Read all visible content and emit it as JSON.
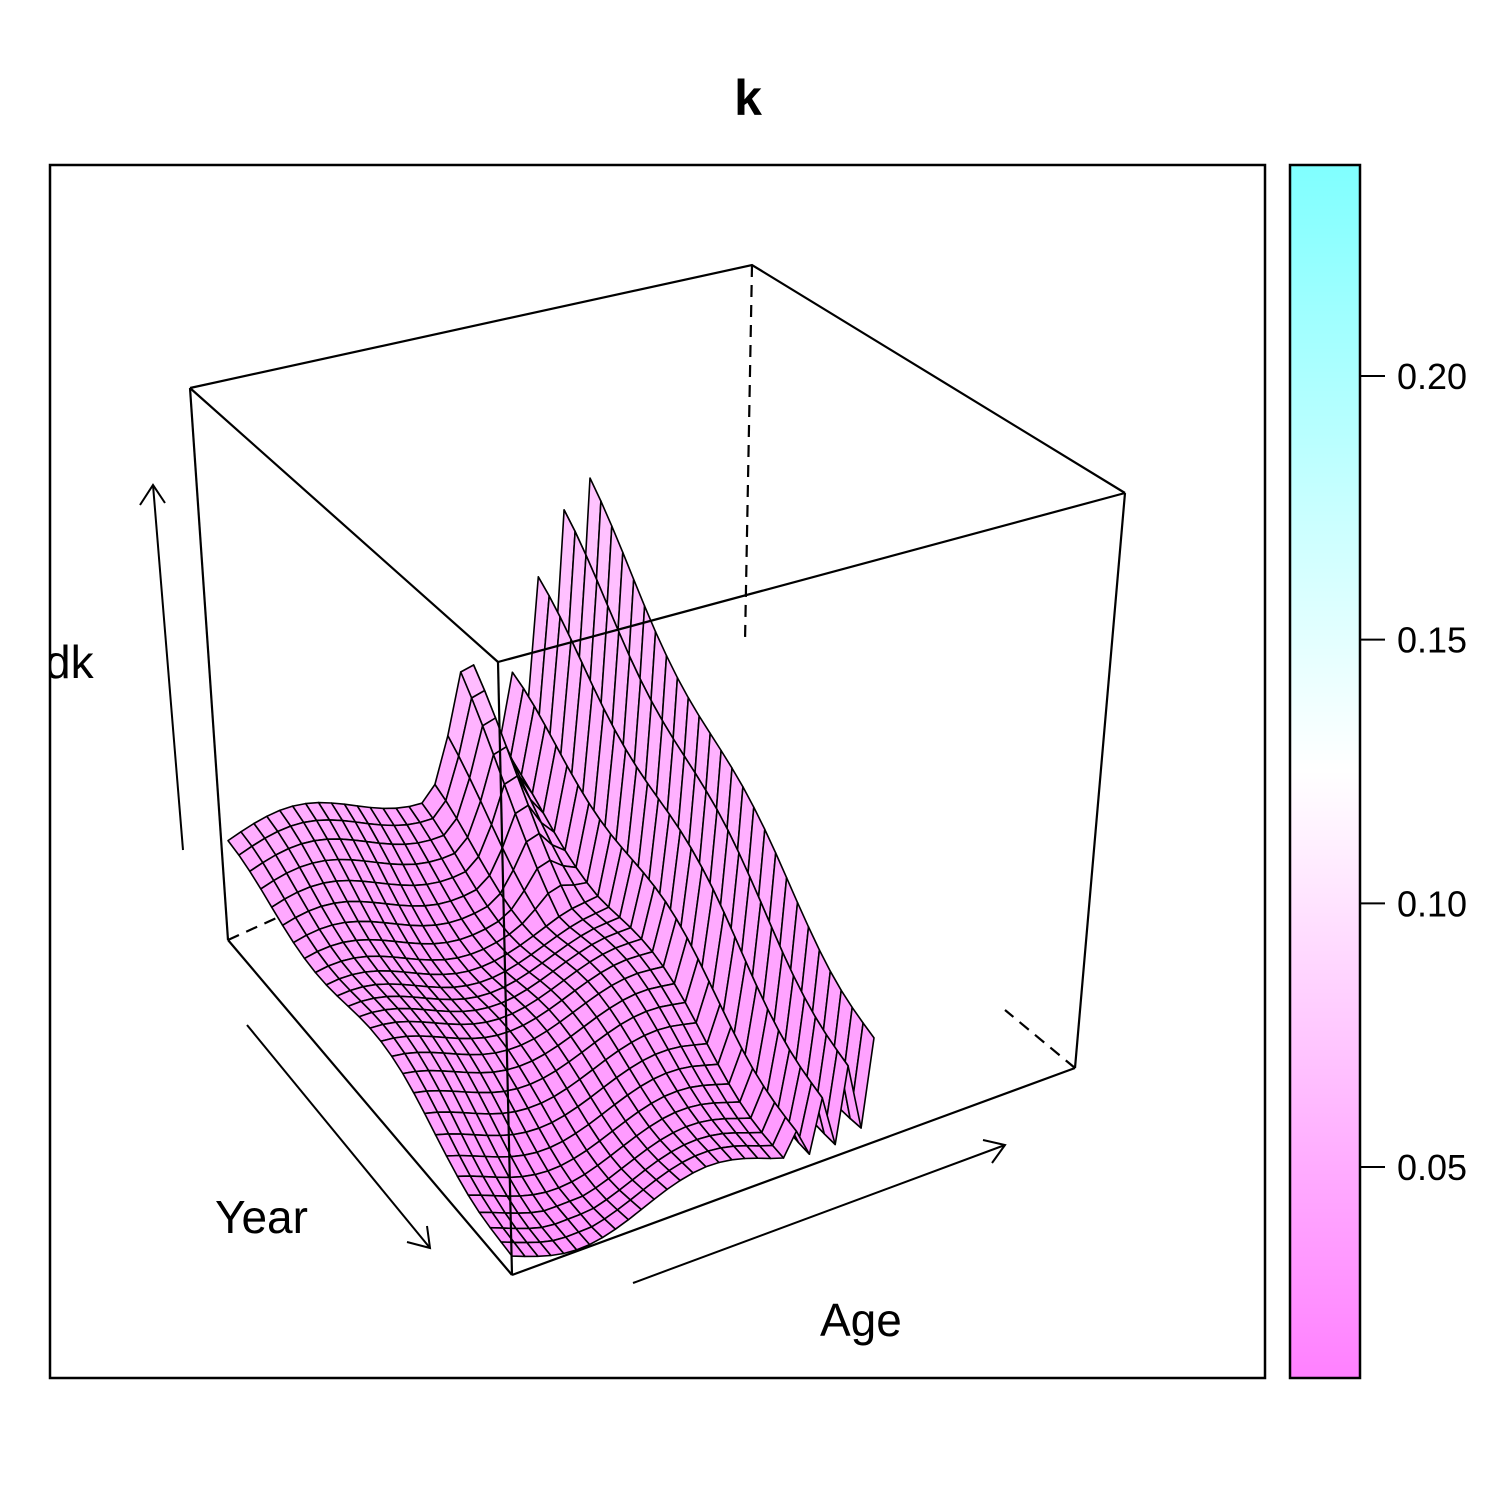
{
  "chart_data": {
    "type": "surface3d",
    "title": "k",
    "axes": {
      "x_label": "Age",
      "y_label": "Year",
      "z_label": "dk"
    },
    "colorkey": {
      "ticks": [
        0.05,
        0.1,
        0.15,
        0.2
      ],
      "tick_labels": [
        "0.05",
        "0.10",
        "0.15",
        "0.20"
      ],
      "range": [
        0.01,
        0.24
      ],
      "colors": [
        "#ff80ff",
        "#ffffff",
        "#80ffff"
      ]
    },
    "grid_on": false,
    "legend_position": "right"
  }
}
